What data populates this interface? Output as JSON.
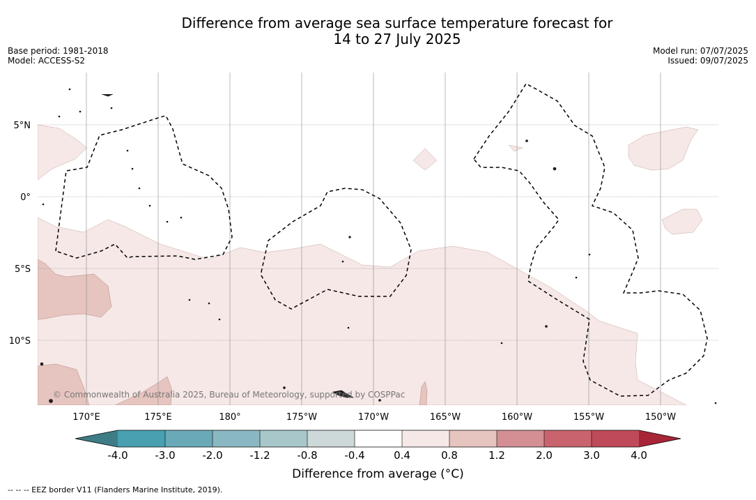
{
  "title_line1": "Difference from average sea surface temperature forecast for",
  "title_line2": "14 to 27 July 2025",
  "meta_left": [
    "Base period: 1981-2018",
    "Model: ACCESS-S2"
  ],
  "meta_right": [
    "Model run: 07/07/2025",
    "Issued: 09/07/2025"
  ],
  "map": {
    "lon_labels": [
      "170°E",
      "175°E",
      "180°",
      "175°W",
      "170°W",
      "165°W",
      "160°W",
      "155°W",
      "150°W"
    ],
    "lat_labels": [
      "5°N",
      "0°",
      "5°S",
      "10°S"
    ],
    "copyright": "© Commonwealth of Australia 2025, Bureau of Meteorology, supported by COSPPac",
    "colors": {
      "anom_0_4": "#f5e8e6",
      "anom_0_8": "#e6c4bf",
      "eez_line": "#000000",
      "grid": "#888888"
    }
  },
  "colorbar": {
    "ticks": [
      "-4.0",
      "-3.0",
      "-2.0",
      "-1.2",
      "-0.8",
      "-0.4",
      "0.4",
      "0.8",
      "1.2",
      "2.0",
      "3.0",
      "4.0"
    ],
    "colors": [
      "#3e7d86",
      "#48a0b0",
      "#6aaab8",
      "#8ab8c2",
      "#a8c7cb",
      "#cdd8d9",
      "#ffffff",
      "#f5e8e6",
      "#e6c4bf",
      "#d38f94",
      "#c9646f",
      "#bf4a5a",
      "#a82538"
    ],
    "label": "Difference from average (°C)"
  },
  "footer": "--  --  -- EEZ border V11 (Flanders Marine Institute, 2019)."
}
